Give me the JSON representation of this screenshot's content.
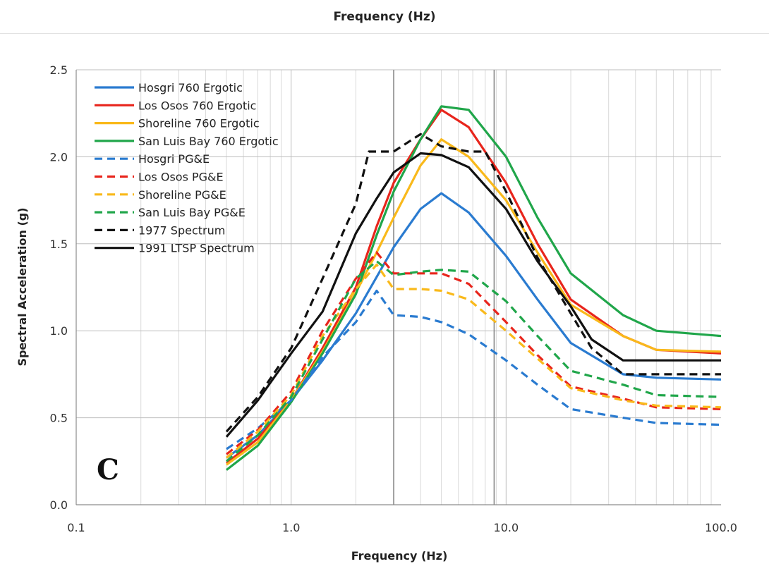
{
  "page": {
    "top_title": "Frequency (Hz)"
  },
  "chart_data": {
    "type": "line",
    "xlabel": "Frequency (Hz)",
    "ylabel": "Spectral Acceleration (g)",
    "x_scale": "log",
    "xlim": [
      0.1,
      100
    ],
    "ylim": [
      0,
      2.5
    ],
    "x_ticks": [
      0.1,
      1,
      10,
      100
    ],
    "x_tick_labels": [
      "0.1",
      "1.0",
      "10.0",
      "100.0"
    ],
    "y_ticks": [
      0,
      0.5,
      1,
      1.5,
      2,
      2.5
    ],
    "y_tick_labels": [
      "0.0",
      "0.5",
      "1.0",
      "1.5",
      "2.0",
      "2.5"
    ],
    "grid": true,
    "legend_position": "top-left",
    "panel_label": "C",
    "series": [
      {
        "name": "Hosgri 760 Ergotic",
        "color": "#2a7bd0",
        "style": "solid",
        "points": [
          [
            0.5,
            0.27
          ],
          [
            0.7,
            0.4
          ],
          [
            1.0,
            0.6
          ],
          [
            1.4,
            0.83
          ],
          [
            2.0,
            1.1
          ],
          [
            3.0,
            1.48
          ],
          [
            4.0,
            1.7
          ],
          [
            5.0,
            1.79
          ],
          [
            6.7,
            1.68
          ],
          [
            10,
            1.43
          ],
          [
            14,
            1.18
          ],
          [
            20,
            0.93
          ],
          [
            35,
            0.75
          ],
          [
            50,
            0.73
          ],
          [
            100,
            0.72
          ]
        ]
      },
      {
        "name": "Los Osos 760 Ergotic",
        "color": "#e8251c",
        "style": "solid",
        "points": [
          [
            0.5,
            0.24
          ],
          [
            0.7,
            0.38
          ],
          [
            1.0,
            0.6
          ],
          [
            1.4,
            0.9
          ],
          [
            2.0,
            1.25
          ],
          [
            2.5,
            1.6
          ],
          [
            3.0,
            1.85
          ],
          [
            4.0,
            2.1
          ],
          [
            5.0,
            2.27
          ],
          [
            6.7,
            2.17
          ],
          [
            10,
            1.85
          ],
          [
            14,
            1.5
          ],
          [
            20,
            1.18
          ],
          [
            35,
            0.97
          ],
          [
            50,
            0.89
          ],
          [
            100,
            0.87
          ]
        ]
      },
      {
        "name": "Shoreline 760 Ergotic",
        "color": "#f9b91b",
        "style": "solid",
        "points": [
          [
            0.5,
            0.23
          ],
          [
            0.7,
            0.36
          ],
          [
            1.0,
            0.6
          ],
          [
            1.4,
            0.88
          ],
          [
            2.0,
            1.22
          ],
          [
            2.5,
            1.45
          ],
          [
            3.0,
            1.65
          ],
          [
            4.0,
            1.95
          ],
          [
            5.0,
            2.1
          ],
          [
            6.7,
            2.0
          ],
          [
            10,
            1.75
          ],
          [
            14,
            1.45
          ],
          [
            20,
            1.15
          ],
          [
            35,
            0.97
          ],
          [
            50,
            0.89
          ],
          [
            100,
            0.88
          ]
        ]
      },
      {
        "name": "San Luis Bay 760 Ergotic",
        "color": "#20a64a",
        "style": "solid",
        "points": [
          [
            0.5,
            0.2
          ],
          [
            0.7,
            0.34
          ],
          [
            1.0,
            0.59
          ],
          [
            1.4,
            0.87
          ],
          [
            2.0,
            1.21
          ],
          [
            2.5,
            1.55
          ],
          [
            3.0,
            1.8
          ],
          [
            4.0,
            2.1
          ],
          [
            5.0,
            2.29
          ],
          [
            6.7,
            2.27
          ],
          [
            10,
            2.0
          ],
          [
            14,
            1.65
          ],
          [
            20,
            1.33
          ],
          [
            35,
            1.09
          ],
          [
            50,
            1.0
          ],
          [
            100,
            0.97
          ]
        ]
      },
      {
        "name": "Hosgri PG&E",
        "color": "#2a7bd0",
        "style": "dashed",
        "points": [
          [
            0.5,
            0.32
          ],
          [
            0.7,
            0.44
          ],
          [
            1.0,
            0.6
          ],
          [
            1.4,
            0.85
          ],
          [
            2.0,
            1.05
          ],
          [
            2.5,
            1.23
          ],
          [
            3.0,
            1.09
          ],
          [
            4.0,
            1.08
          ],
          [
            5.0,
            1.05
          ],
          [
            6.7,
            0.98
          ],
          [
            10,
            0.83
          ],
          [
            14,
            0.69
          ],
          [
            20,
            0.55
          ],
          [
            35,
            0.5
          ],
          [
            50,
            0.47
          ],
          [
            100,
            0.46
          ]
        ]
      },
      {
        "name": "Los Osos PG&E",
        "color": "#e8251c",
        "style": "dashed",
        "points": [
          [
            0.5,
            0.29
          ],
          [
            0.7,
            0.43
          ],
          [
            1.0,
            0.65
          ],
          [
            1.4,
            1.0
          ],
          [
            2.0,
            1.3
          ],
          [
            2.5,
            1.45
          ],
          [
            3.0,
            1.33
          ],
          [
            4.0,
            1.33
          ],
          [
            5.0,
            1.33
          ],
          [
            6.7,
            1.27
          ],
          [
            10,
            1.05
          ],
          [
            14,
            0.86
          ],
          [
            20,
            0.68
          ],
          [
            35,
            0.61
          ],
          [
            50,
            0.56
          ],
          [
            100,
            0.55
          ]
        ]
      },
      {
        "name": "Shoreline PG&E",
        "color": "#f9b91b",
        "style": "dashed",
        "points": [
          [
            0.5,
            0.27
          ],
          [
            0.7,
            0.42
          ],
          [
            1.0,
            0.63
          ],
          [
            1.4,
            0.97
          ],
          [
            2.0,
            1.24
          ],
          [
            2.5,
            1.38
          ],
          [
            3.0,
            1.24
          ],
          [
            4.0,
            1.24
          ],
          [
            5.0,
            1.23
          ],
          [
            6.7,
            1.18
          ],
          [
            10,
            1.0
          ],
          [
            14,
            0.84
          ],
          [
            20,
            0.67
          ],
          [
            35,
            0.6
          ],
          [
            50,
            0.57
          ],
          [
            100,
            0.56
          ]
        ]
      },
      {
        "name": "San Luis Bay PG&E",
        "color": "#20a64a",
        "style": "dashed",
        "points": [
          [
            0.5,
            0.25
          ],
          [
            0.7,
            0.4
          ],
          [
            1.0,
            0.62
          ],
          [
            1.4,
            0.95
          ],
          [
            2.0,
            1.3
          ],
          [
            2.5,
            1.4
          ],
          [
            3.0,
            1.32
          ],
          [
            4.0,
            1.34
          ],
          [
            5.0,
            1.35
          ],
          [
            6.7,
            1.34
          ],
          [
            10,
            1.17
          ],
          [
            14,
            0.97
          ],
          [
            20,
            0.77
          ],
          [
            35,
            0.69
          ],
          [
            50,
            0.63
          ],
          [
            100,
            0.62
          ]
        ]
      },
      {
        "name": "1977 Spectrum",
        "color": "#111111",
        "style": "dashed",
        "points": [
          [
            0.5,
            0.42
          ],
          [
            0.7,
            0.62
          ],
          [
            1.0,
            0.9
          ],
          [
            1.4,
            1.3
          ],
          [
            2.0,
            1.73
          ],
          [
            2.3,
            2.03
          ],
          [
            3.0,
            2.03
          ],
          [
            4.0,
            2.13
          ],
          [
            5.0,
            2.06
          ],
          [
            6.7,
            2.03
          ],
          [
            8.0,
            2.03
          ],
          [
            10,
            1.8
          ],
          [
            14,
            1.42
          ],
          [
            20,
            1.1
          ],
          [
            25,
            0.9
          ],
          [
            35,
            0.75
          ],
          [
            100,
            0.75
          ]
        ]
      },
      {
        "name": "1991 LTSP Spectrum",
        "color": "#111111",
        "style": "solid",
        "points": [
          [
            0.5,
            0.39
          ],
          [
            0.7,
            0.6
          ],
          [
            1.0,
            0.87
          ],
          [
            1.4,
            1.11
          ],
          [
            2.0,
            1.56
          ],
          [
            2.5,
            1.76
          ],
          [
            3.0,
            1.91
          ],
          [
            4.0,
            2.02
          ],
          [
            5.0,
            2.01
          ],
          [
            6.7,
            1.94
          ],
          [
            10,
            1.7
          ],
          [
            14,
            1.4
          ],
          [
            20,
            1.14
          ],
          [
            25,
            0.95
          ],
          [
            35,
            0.83
          ],
          [
            100,
            0.83
          ]
        ]
      }
    ]
  }
}
